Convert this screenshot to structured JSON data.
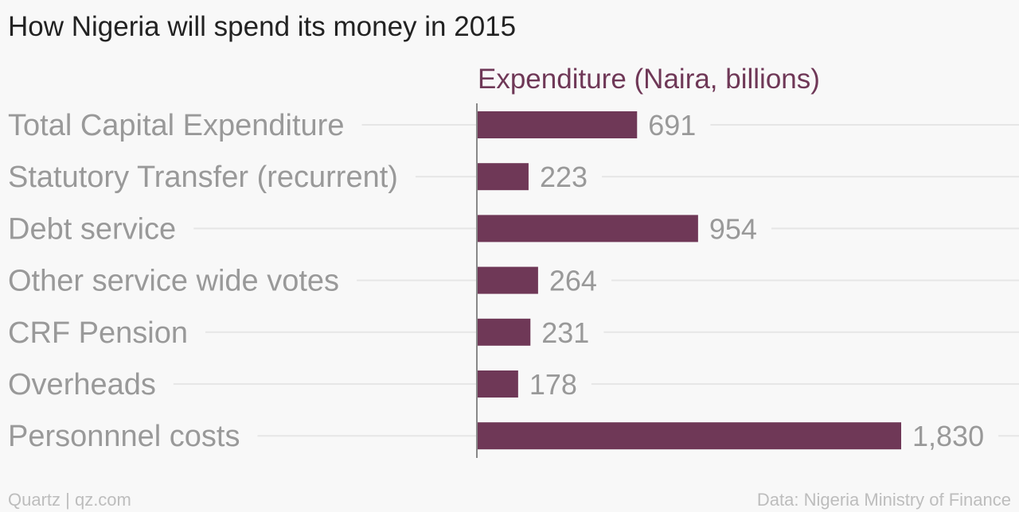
{
  "title": "How Nigeria will spend its money in 2015",
  "footer": {
    "credit": "Quartz | qz.com",
    "source": "Data: Nigeria Ministry of Finance"
  },
  "colors": {
    "bar": "#6f3857",
    "series_label": "#6f3857"
  },
  "chart_data": {
    "type": "bar",
    "orientation": "horizontal",
    "title": "How Nigeria will spend its money in 2015",
    "series": [
      {
        "name": "Expenditure (Naira, billions)",
        "values": [
          691,
          223,
          954,
          264,
          231,
          178,
          1830
        ]
      }
    ],
    "categories": [
      "Total Capital Expenditure",
      "Statutory Transfer (recurrent)",
      "Debt service",
      "Other service wide votes",
      "CRF Pension",
      "Overheads",
      "Personnnel costs"
    ],
    "value_labels": [
      "691",
      "223",
      "954",
      "264",
      "231",
      "178",
      "1,830"
    ],
    "xlim": [
      0,
      1830
    ],
    "grid": true
  }
}
